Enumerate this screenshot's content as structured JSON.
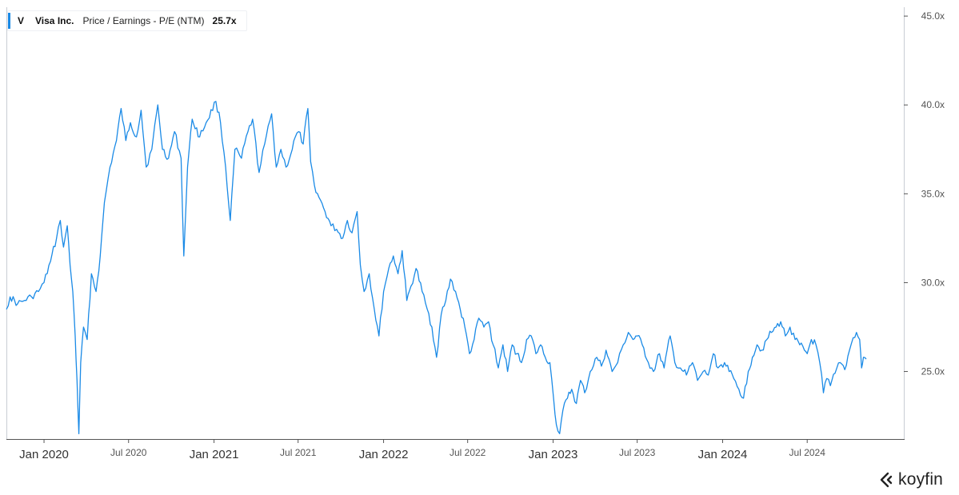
{
  "legend": {
    "ticker": "V",
    "company": "Visa Inc.",
    "metric": "Price / Earnings - P/E (NTM)",
    "value": "25.7x"
  },
  "brand": {
    "name": "koyfin"
  },
  "colors": {
    "line": "#1a8ae6",
    "axis": "#555555",
    "grid": "#e8ebf0"
  },
  "chart_data": {
    "type": "line",
    "title": "",
    "xlabel": "",
    "ylabel": "",
    "y_ticks": [
      {
        "value": 25,
        "label": "25.0x"
      },
      {
        "value": 30,
        "label": "30.0x"
      },
      {
        "value": 35,
        "label": "35.0x"
      },
      {
        "value": 40,
        "label": "40.0x"
      },
      {
        "value": 45,
        "label": "45.0x"
      }
    ],
    "x_ticks": [
      {
        "date": "2020-01-01",
        "label": "Jan 2020",
        "major": true
      },
      {
        "date": "2020-07-01",
        "label": "Jul 2020",
        "major": false
      },
      {
        "date": "2021-01-01",
        "label": "Jan 2021",
        "major": true
      },
      {
        "date": "2021-07-01",
        "label": "Jul 2021",
        "major": false
      },
      {
        "date": "2022-01-01",
        "label": "Jan 2022",
        "major": true
      },
      {
        "date": "2022-07-01",
        "label": "Jul 2022",
        "major": false
      },
      {
        "date": "2023-01-01",
        "label": "Jan 2023",
        "major": true
      },
      {
        "date": "2023-07-01",
        "label": "Jul 2023",
        "major": false
      },
      {
        "date": "2024-01-01",
        "label": "Jan 2024",
        "major": true
      },
      {
        "date": "2024-07-01",
        "label": "Jul 2024",
        "major": false
      }
    ],
    "ylim": [
      21.2,
      45.5
    ],
    "xlim": [
      "2019-10-12",
      "2025-01-25"
    ],
    "y_axis_position": "right",
    "grid": false,
    "series": [
      {
        "name": "Visa Inc. Price / Earnings - P/E (NTM)",
        "points": [
          [
            "2019-10-12",
            28.5
          ],
          [
            "2019-10-20",
            29.2
          ],
          [
            "2019-11-05",
            28.8
          ],
          [
            "2019-11-20",
            29.0
          ],
          [
            "2019-12-05",
            29.2
          ],
          [
            "2019-12-20",
            29.5
          ],
          [
            "2020-01-01",
            30.0
          ],
          [
            "2020-01-15",
            31.2
          ],
          [
            "2020-01-28",
            32.5
          ],
          [
            "2020-02-05",
            33.5
          ],
          [
            "2020-02-12",
            32.0
          ],
          [
            "2020-02-20",
            33.2
          ],
          [
            "2020-02-26",
            31.0
          ],
          [
            "2020-03-03",
            29.5
          ],
          [
            "2020-03-08",
            27.0
          ],
          [
            "2020-03-12",
            24.5
          ],
          [
            "2020-03-16",
            21.5
          ],
          [
            "2020-03-20",
            25.5
          ],
          [
            "2020-03-26",
            27.5
          ],
          [
            "2020-04-03",
            26.8
          ],
          [
            "2020-04-12",
            30.5
          ],
          [
            "2020-04-22",
            29.5
          ],
          [
            "2020-05-01",
            31.5
          ],
          [
            "2020-05-10",
            34.5
          ],
          [
            "2020-05-22",
            36.5
          ],
          [
            "2020-06-05",
            38.0
          ],
          [
            "2020-06-15",
            39.8
          ],
          [
            "2020-06-25",
            38.0
          ],
          [
            "2020-07-05",
            39.0
          ],
          [
            "2020-07-18",
            38.2
          ],
          [
            "2020-07-28",
            39.7
          ],
          [
            "2020-08-08",
            36.5
          ],
          [
            "2020-08-20",
            37.5
          ],
          [
            "2020-09-02",
            40.0
          ],
          [
            "2020-09-12",
            37.5
          ],
          [
            "2020-09-25",
            37.0
          ],
          [
            "2020-10-08",
            38.5
          ],
          [
            "2020-10-22",
            37.0
          ],
          [
            "2020-10-28",
            31.5
          ],
          [
            "2020-11-05",
            36.5
          ],
          [
            "2020-11-15",
            39.2
          ],
          [
            "2020-12-01",
            38.2
          ],
          [
            "2020-12-15",
            39.0
          ],
          [
            "2021-01-05",
            40.2
          ],
          [
            "2021-01-15",
            39.0
          ],
          [
            "2021-01-26",
            36.5
          ],
          [
            "2021-02-05",
            33.5
          ],
          [
            "2021-02-15",
            37.5
          ],
          [
            "2021-03-01",
            37.0
          ],
          [
            "2021-03-15",
            38.5
          ],
          [
            "2021-03-25",
            39.2
          ],
          [
            "2021-04-08",
            36.2
          ],
          [
            "2021-04-20",
            37.8
          ],
          [
            "2021-05-05",
            39.5
          ],
          [
            "2021-05-15",
            36.5
          ],
          [
            "2021-05-25",
            37.5
          ],
          [
            "2021-06-05",
            36.5
          ],
          [
            "2021-06-15",
            37.2
          ],
          [
            "2021-06-25",
            38.2
          ],
          [
            "2021-07-02",
            38.5
          ],
          [
            "2021-07-12",
            37.8
          ],
          [
            "2021-07-22",
            39.8
          ],
          [
            "2021-07-28",
            36.8
          ],
          [
            "2021-08-05",
            35.5
          ],
          [
            "2021-08-15",
            34.8
          ],
          [
            "2021-08-28",
            34.0
          ],
          [
            "2021-09-10",
            33.2
          ],
          [
            "2021-09-22",
            33.0
          ],
          [
            "2021-10-05",
            32.5
          ],
          [
            "2021-10-15",
            33.5
          ],
          [
            "2021-10-25",
            32.8
          ],
          [
            "2021-11-05",
            34.0
          ],
          [
            "2021-11-12",
            31.0
          ],
          [
            "2021-11-20",
            29.5
          ],
          [
            "2021-12-01",
            30.5
          ],
          [
            "2021-12-12",
            28.5
          ],
          [
            "2021-12-22",
            27.0
          ],
          [
            "2022-01-01",
            29.5
          ],
          [
            "2022-01-12",
            30.8
          ],
          [
            "2022-01-22",
            31.5
          ],
          [
            "2022-02-01",
            30.5
          ],
          [
            "2022-02-10",
            31.8
          ],
          [
            "2022-02-20",
            29.0
          ],
          [
            "2022-03-01",
            29.8
          ],
          [
            "2022-03-12",
            30.8
          ],
          [
            "2022-03-25",
            29.5
          ],
          [
            "2022-04-05",
            28.5
          ],
          [
            "2022-04-15",
            27.5
          ],
          [
            "2022-04-25",
            25.8
          ],
          [
            "2022-05-05",
            28.2
          ],
          [
            "2022-05-15",
            29.0
          ],
          [
            "2022-05-25",
            30.2
          ],
          [
            "2022-06-05",
            29.5
          ],
          [
            "2022-06-15",
            28.5
          ],
          [
            "2022-06-25",
            27.5
          ],
          [
            "2022-07-05",
            26.0
          ],
          [
            "2022-07-15",
            26.8
          ],
          [
            "2022-07-25",
            28.0
          ],
          [
            "2022-08-05",
            27.5
          ],
          [
            "2022-08-15",
            27.8
          ],
          [
            "2022-08-25",
            26.5
          ],
          [
            "2022-09-05",
            25.2
          ],
          [
            "2022-09-15",
            26.5
          ],
          [
            "2022-09-25",
            25.0
          ],
          [
            "2022-10-05",
            26.5
          ],
          [
            "2022-10-15",
            26.0
          ],
          [
            "2022-10-25",
            25.5
          ],
          [
            "2022-11-05",
            26.8
          ],
          [
            "2022-11-15",
            27.0
          ],
          [
            "2022-11-25",
            26.0
          ],
          [
            "2022-12-05",
            26.5
          ],
          [
            "2022-12-15",
            25.8
          ],
          [
            "2022-12-25",
            25.5
          ],
          [
            "2023-01-02",
            23.5
          ],
          [
            "2023-01-08",
            22.0
          ],
          [
            "2023-01-15",
            21.5
          ],
          [
            "2023-01-22",
            22.8
          ],
          [
            "2023-02-01",
            23.5
          ],
          [
            "2023-02-10",
            24.0
          ],
          [
            "2023-02-20",
            23.2
          ],
          [
            "2023-03-01",
            24.5
          ],
          [
            "2023-03-10",
            23.8
          ],
          [
            "2023-03-22",
            25.0
          ],
          [
            "2023-04-05",
            25.8
          ],
          [
            "2023-04-15",
            25.3
          ],
          [
            "2023-04-25",
            26.2
          ],
          [
            "2023-05-08",
            25.0
          ],
          [
            "2023-05-20",
            25.5
          ],
          [
            "2023-06-01",
            26.5
          ],
          [
            "2023-06-12",
            27.2
          ],
          [
            "2023-06-22",
            26.8
          ],
          [
            "2023-07-01",
            27.0
          ],
          [
            "2023-07-12",
            26.5
          ],
          [
            "2023-07-25",
            25.5
          ],
          [
            "2023-08-05",
            25.0
          ],
          [
            "2023-08-18",
            26.0
          ],
          [
            "2023-08-28",
            25.2
          ],
          [
            "2023-09-10",
            27.0
          ],
          [
            "2023-09-20",
            25.5
          ],
          [
            "2023-10-02",
            25.2
          ],
          [
            "2023-10-15",
            24.8
          ],
          [
            "2023-10-28",
            25.5
          ],
          [
            "2023-11-08",
            24.5
          ],
          [
            "2023-11-20",
            25.0
          ],
          [
            "2023-12-01",
            24.8
          ],
          [
            "2023-12-12",
            26.0
          ],
          [
            "2023-12-22",
            25.2
          ],
          [
            "2024-01-05",
            25.5
          ],
          [
            "2024-01-15",
            25.0
          ],
          [
            "2024-01-25",
            24.6
          ],
          [
            "2024-02-05",
            24.0
          ],
          [
            "2024-02-15",
            23.5
          ],
          [
            "2024-02-25",
            25.0
          ],
          [
            "2024-03-05",
            25.8
          ],
          [
            "2024-03-15",
            26.5
          ],
          [
            "2024-03-25",
            26.2
          ],
          [
            "2024-04-05",
            26.8
          ],
          [
            "2024-04-15",
            27.2
          ],
          [
            "2024-04-25",
            27.5
          ],
          [
            "2024-05-05",
            27.8
          ],
          [
            "2024-05-15",
            27.0
          ],
          [
            "2024-05-25",
            27.5
          ],
          [
            "2024-06-05",
            26.8
          ],
          [
            "2024-06-15",
            26.5
          ],
          [
            "2024-06-25",
            26.2
          ],
          [
            "2024-07-01",
            26.0
          ],
          [
            "2024-07-10",
            26.8
          ],
          [
            "2024-07-20",
            26.5
          ],
          [
            "2024-07-28",
            25.5
          ],
          [
            "2024-08-05",
            23.8
          ],
          [
            "2024-08-12",
            24.6
          ],
          [
            "2024-08-20",
            24.2
          ],
          [
            "2024-08-30",
            24.9
          ],
          [
            "2024-09-10",
            25.5
          ],
          [
            "2024-09-20",
            25.1
          ],
          [
            "2024-09-30",
            26.2
          ],
          [
            "2024-10-08",
            26.9
          ],
          [
            "2024-10-15",
            27.2
          ],
          [
            "2024-10-22",
            26.8
          ],
          [
            "2024-10-26",
            25.2
          ],
          [
            "2024-10-30",
            25.8
          ],
          [
            "2024-11-05",
            25.7
          ]
        ]
      }
    ]
  }
}
